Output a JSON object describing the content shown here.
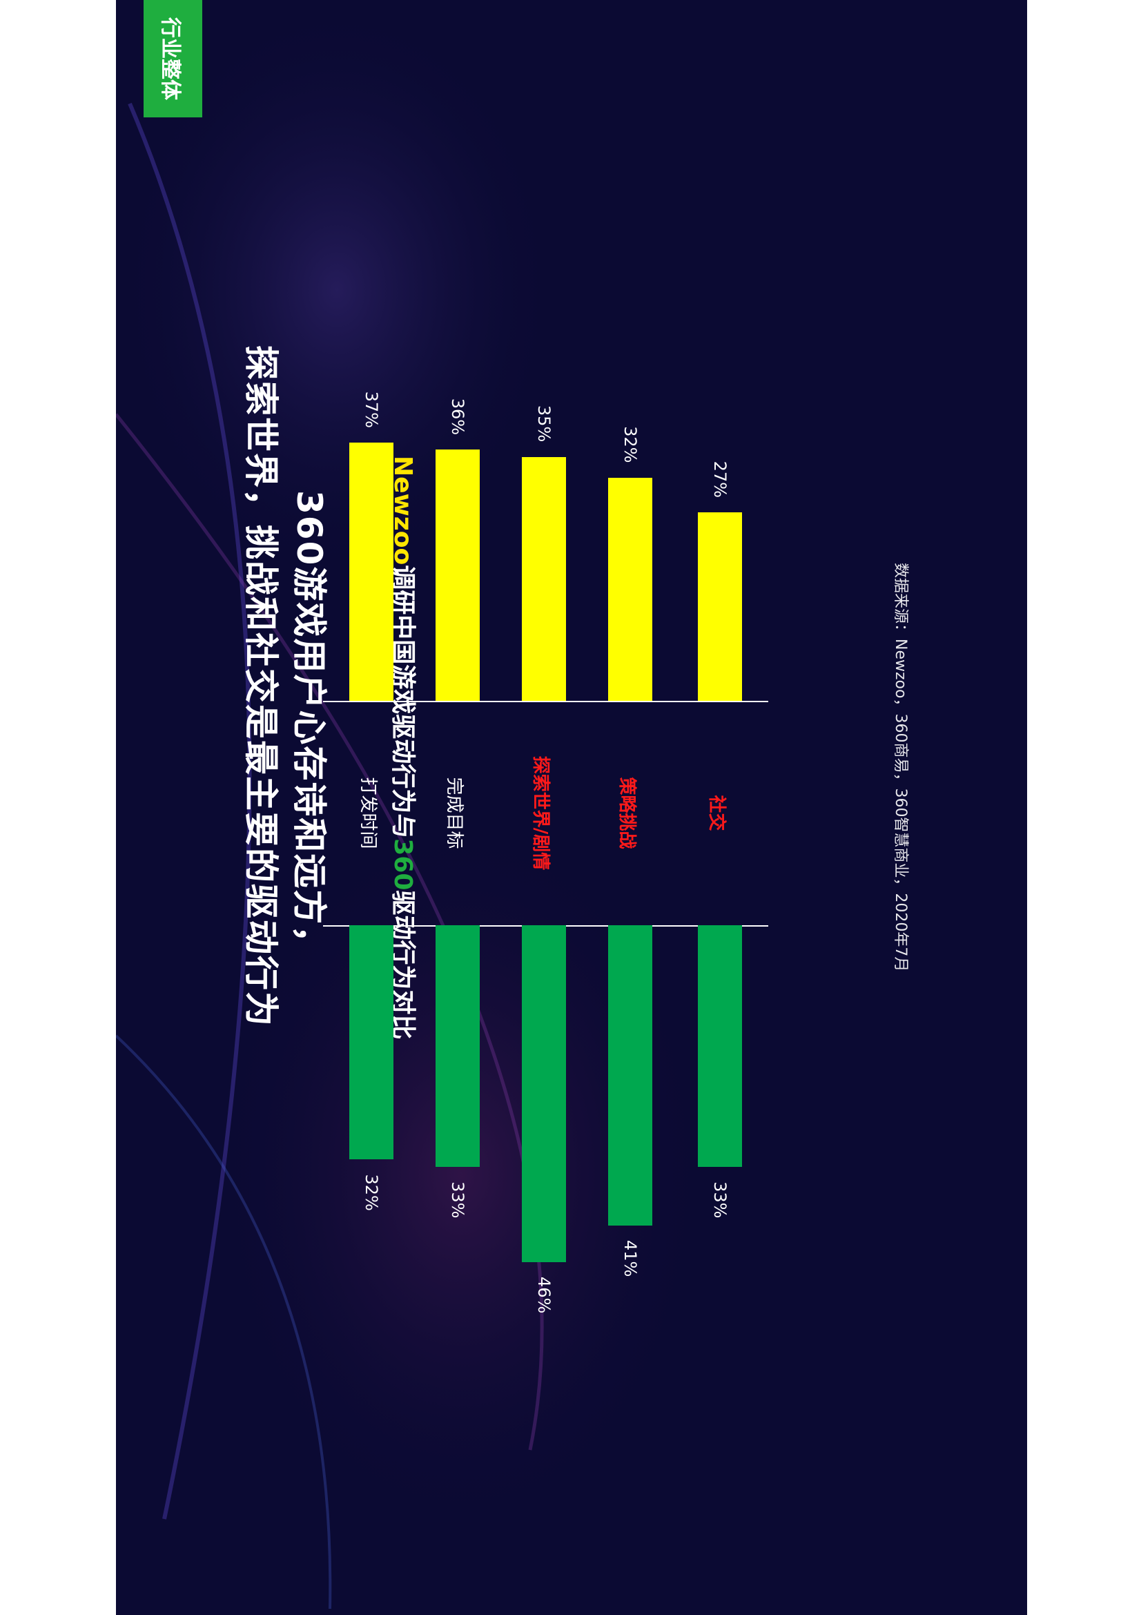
{
  "badge": "行业整体",
  "title": {
    "line1": "360游戏用户心存诗和远方，",
    "line2": "探索世界，挑战和社交是最主要的驱动行为"
  },
  "subtitle": {
    "part1": "Newzoo",
    "part2": "调研中国游戏驱动行为与",
    "part3": "360",
    "part4": "驱动行为对比"
  },
  "source": "数据来源：Newzoo，360商易，360智慧商业，2020年7月",
  "colors": {
    "background": "#0b0a33",
    "newzoo_bar": "#ffff00",
    "s360_bar": "#00a84f",
    "highlight_label": "#ff1a1a",
    "badge": "#1fae3f",
    "subtitle_newzoo": "#ffe600",
    "subtitle_360": "#1fae3f"
  },
  "chart_data": {
    "type": "bar",
    "categories": [
      "打发时间",
      "完成目标",
      "探索世界/剧情",
      "策略挑战",
      "社交"
    ],
    "highlighted": [
      false,
      false,
      true,
      true,
      true
    ],
    "series": [
      {
        "name": "Newzoo",
        "values": [
          37,
          36,
          35,
          32,
          27
        ],
        "labels": [
          "37%",
          "36%",
          "35%",
          "32%",
          "27%"
        ]
      },
      {
        "name": "360",
        "values": [
          32,
          33,
          46,
          41,
          33
        ],
        "labels": [
          "32%",
          "33%",
          "46%",
          "41%",
          "33%"
        ]
      }
    ],
    "unit": "%"
  }
}
